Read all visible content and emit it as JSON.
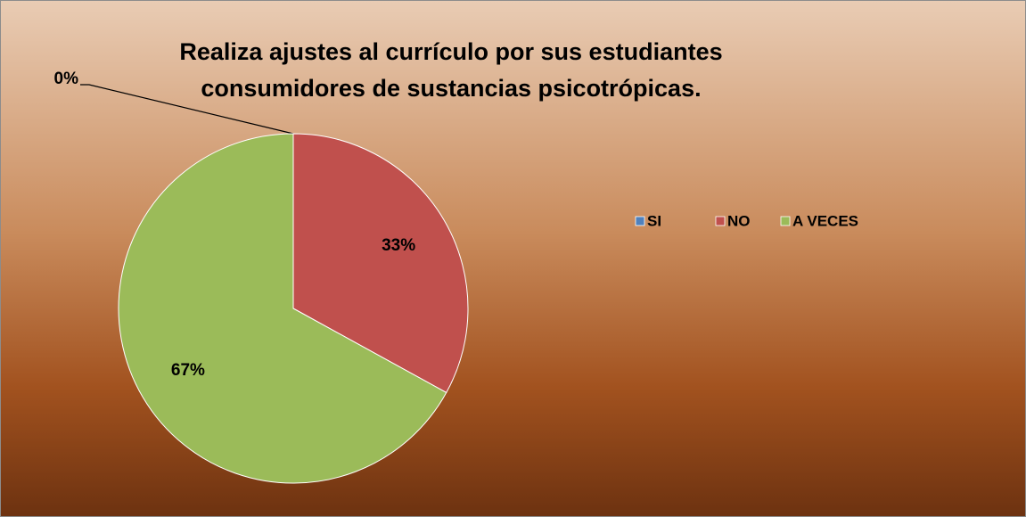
{
  "chart_data": {
    "type": "pie",
    "title": [
      "Realiza ajustes al currículo por  sus estudiantes",
      "consumidores de sustancias psicotrópicas."
    ],
    "categories": [
      "SI",
      "NO",
      "A VECES"
    ],
    "values": [
      0,
      33,
      67
    ],
    "value_labels": [
      "0%",
      "33%",
      "67%"
    ],
    "colors": [
      "#4f81bd",
      "#c0504d",
      "#9bbb59"
    ],
    "legend": "right"
  }
}
